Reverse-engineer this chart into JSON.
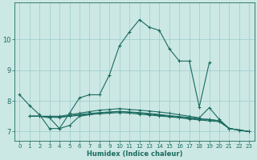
{
  "xlabel": "Humidex (Indice chaleur)",
  "bg_color": "#cce8e4",
  "grid_color": "#99cccc",
  "line_color": "#1a6b60",
  "xlim": [
    -0.5,
    23.5
  ],
  "ylim": [
    6.7,
    11.2
  ],
  "yticks": [
    7,
    8,
    9,
    10
  ],
  "xticks": [
    0,
    1,
    2,
    3,
    4,
    5,
    6,
    7,
    8,
    9,
    10,
    11,
    12,
    13,
    14,
    15,
    16,
    17,
    18,
    19,
    20,
    21,
    22,
    23
  ],
  "line1_x": [
    0,
    1,
    2,
    3,
    4,
    5,
    6,
    7,
    8,
    9,
    10,
    11,
    12,
    13,
    14,
    15,
    16,
    17,
    18,
    19
  ],
  "line1_y": [
    8.2,
    7.85,
    7.55,
    7.1,
    7.1,
    7.6,
    8.1,
    8.2,
    8.2,
    8.85,
    9.8,
    10.25,
    10.65,
    10.4,
    10.3,
    9.7,
    9.3,
    9.3,
    7.8,
    9.25
  ],
  "line2_x": [
    1,
    2,
    3,
    4,
    5,
    6,
    7,
    8,
    9,
    10,
    11,
    12,
    13,
    14,
    15,
    16,
    17,
    18,
    19,
    20,
    21,
    22,
    23
  ],
  "line2_y": [
    7.5,
    7.5,
    7.5,
    7.5,
    7.55,
    7.6,
    7.65,
    7.7,
    7.72,
    7.75,
    7.72,
    7.7,
    7.67,
    7.64,
    7.6,
    7.55,
    7.5,
    7.45,
    7.78,
    7.4,
    7.1,
    7.05,
    7.0
  ],
  "line3_x": [
    1,
    2,
    3,
    4,
    5,
    6,
    7,
    8,
    9,
    10,
    11,
    12,
    13,
    14,
    15,
    16,
    17,
    18,
    19,
    20,
    21,
    22,
    23
  ],
  "line3_y": [
    7.5,
    7.5,
    7.45,
    7.1,
    7.2,
    7.5,
    7.55,
    7.6,
    7.63,
    7.65,
    7.63,
    7.6,
    7.57,
    7.53,
    7.5,
    7.47,
    7.44,
    7.4,
    7.4,
    7.35,
    7.1,
    7.05,
    7.0
  ],
  "line4_x": [
    1,
    2,
    3,
    4,
    5,
    6,
    7,
    8,
    9,
    10,
    11,
    12,
    13,
    14,
    15,
    16,
    17,
    18,
    19,
    20,
    21,
    22,
    23
  ],
  "line4_y": [
    7.5,
    7.5,
    7.48,
    7.47,
    7.52,
    7.56,
    7.59,
    7.62,
    7.64,
    7.66,
    7.64,
    7.62,
    7.59,
    7.56,
    7.52,
    7.49,
    7.46,
    7.42,
    7.39,
    7.35,
    7.1,
    7.05,
    7.0
  ],
  "line5_x": [
    1,
    2,
    3,
    4,
    5,
    6,
    7,
    8,
    9,
    10,
    11,
    12,
    13,
    14,
    15,
    16,
    17,
    18,
    19,
    20,
    21,
    22,
    23
  ],
  "line5_y": [
    7.5,
    7.5,
    7.47,
    7.46,
    7.5,
    7.53,
    7.56,
    7.58,
    7.6,
    7.62,
    7.6,
    7.57,
    7.54,
    7.51,
    7.48,
    7.45,
    7.41,
    7.38,
    7.35,
    7.32,
    7.1,
    7.05,
    7.0
  ]
}
